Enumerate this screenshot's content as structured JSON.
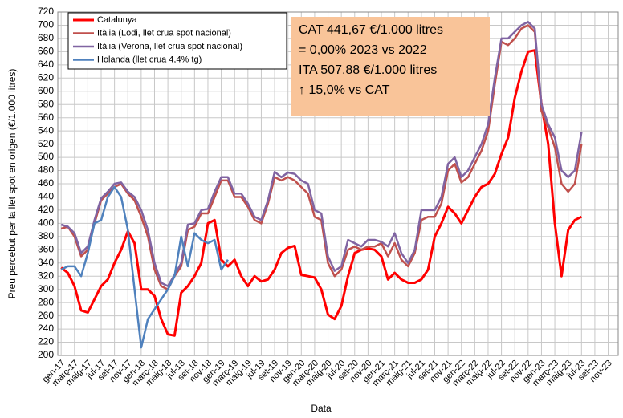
{
  "chart_data": {
    "type": "line",
    "x_label": "Data",
    "y_label": "Preu percebut per la llet spot en origen (€/1.000 litres)",
    "annotation": [
      "CAT 441,67 €/1.000 litres",
      "= 0,00% 2023 vs 2022",
      "ITA 507,88 €/1.000 litres",
      "↑ 15,0% vs CAT"
    ],
    "categories": [
      "gen-17",
      null,
      "març-17",
      null,
      "maig-17",
      null,
      "jul-17",
      null,
      "set-17",
      null,
      "nov-17",
      null,
      "gen-18",
      null,
      "març-18",
      null,
      "maig-18",
      null,
      "jul-18",
      null,
      "set-18",
      null,
      "nov-18",
      null,
      "gen-19",
      null,
      "març-19",
      null,
      "maig-19",
      null,
      "jul-19",
      null,
      "set-19",
      null,
      "nov-19",
      null,
      "gen-20",
      null,
      "març-20",
      null,
      "maig-20",
      null,
      "jul-20",
      null,
      "set-20",
      null,
      "nov-20",
      null,
      "gen-21",
      null,
      "març-21",
      null,
      "maig-21",
      null,
      "jul-21",
      null,
      "set-21",
      null,
      "nov-21",
      null,
      "gen-22",
      null,
      "març-22",
      null,
      "maig-22",
      null,
      "jul-22",
      null,
      "set-22",
      null,
      "nov-22",
      null,
      "gen-23",
      null,
      "març-23",
      null,
      "maig-23",
      null,
      "jul-23",
      null,
      "set-23",
      null,
      "nov-23",
      null
    ],
    "series": [
      {
        "name": "Catalunya",
        "color": "#ff0000",
        "width": 3,
        "values": [
          333,
          325,
          305,
          268,
          265,
          285,
          305,
          315,
          340,
          360,
          388,
          370,
          300,
          300,
          290,
          255,
          232,
          230,
          295,
          305,
          320,
          340,
          400,
          405,
          345,
          335,
          345,
          320,
          305,
          320,
          312,
          315,
          330,
          355,
          363,
          366,
          322,
          320,
          318,
          300,
          262,
          255,
          275,
          320,
          355,
          360,
          362,
          360,
          350,
          315,
          325,
          315,
          310,
          310,
          315,
          330,
          380,
          400,
          425,
          415,
          400,
          420,
          440,
          455,
          460,
          475,
          505,
          530,
          590,
          630,
          660,
          662,
          580,
          520,
          400,
          320,
          390,
          405,
          410,
          null,
          null,
          null,
          null,
          null
        ]
      },
      {
        "name": "Itàlia (Lodi, llet crua spot nacional)",
        "color": "#c0504d",
        "width": 2.5,
        "values": [
          392,
          395,
          380,
          350,
          360,
          400,
          435,
          445,
          455,
          460,
          445,
          435,
          410,
          380,
          330,
          305,
          300,
          320,
          335,
          390,
          395,
          415,
          415,
          440,
          465,
          465,
          440,
          440,
          425,
          405,
          400,
          430,
          470,
          465,
          470,
          465,
          455,
          445,
          410,
          405,
          340,
          320,
          330,
          360,
          365,
          360,
          365,
          365,
          370,
          350,
          370,
          345,
          335,
          355,
          405,
          410,
          410,
          430,
          480,
          490,
          462,
          470,
          490,
          510,
          540,
          610,
          675,
          670,
          680,
          695,
          700,
          690,
          570,
          545,
          515,
          460,
          448,
          460,
          520,
          null,
          null,
          null,
          null,
          null
        ]
      },
      {
        "name": "Itàlia (Verona, llet crua spot nacional)",
        "color": "#8064a2",
        "width": 2.5,
        "values": [
          398,
          395,
          385,
          355,
          365,
          405,
          438,
          448,
          460,
          462,
          448,
          440,
          420,
          390,
          340,
          310,
          305,
          322,
          340,
          398,
          400,
          420,
          422,
          448,
          470,
          470,
          445,
          445,
          430,
          410,
          405,
          435,
          478,
          470,
          477,
          475,
          465,
          460,
          420,
          415,
          350,
          328,
          335,
          375,
          370,
          365,
          375,
          375,
          372,
          365,
          385,
          355,
          340,
          360,
          420,
          420,
          420,
          440,
          490,
          500,
          470,
          480,
          500,
          520,
          550,
          620,
          680,
          680,
          690,
          700,
          705,
          695,
          580,
          550,
          530,
          480,
          470,
          480,
          538,
          null,
          null,
          null,
          null,
          null
        ]
      },
      {
        "name": "Holanda (llet crua 4,4% tg)",
        "color": "#4f81bd",
        "width": 2.5,
        "values": [
          330,
          335,
          335,
          320,
          355,
          400,
          405,
          440,
          455,
          440,
          390,
          300,
          212,
          255,
          270,
          285,
          300,
          320,
          380,
          335,
          385,
          375,
          370,
          375,
          330,
          345,
          null,
          null,
          null,
          null,
          null,
          null,
          null,
          null,
          null,
          null,
          null,
          null,
          null,
          null,
          null,
          null,
          null,
          null,
          null,
          null,
          null,
          null,
          null,
          null,
          null,
          null,
          null,
          null,
          null,
          null,
          null,
          null,
          null,
          null,
          null,
          null,
          null,
          null,
          null,
          null,
          null,
          null,
          null,
          null,
          null,
          null,
          null,
          null,
          null,
          null,
          null,
          null,
          null,
          null,
          null,
          null,
          null,
          null
        ]
      }
    ],
    "ylim": [
      200,
      720
    ],
    "yticks": [
      200,
      220,
      240,
      260,
      280,
      300,
      320,
      340,
      360,
      380,
      400,
      420,
      440,
      460,
      480,
      500,
      520,
      540,
      560,
      580,
      600,
      620,
      640,
      660,
      680,
      700,
      720
    ],
    "grid": true,
    "legend": "upper left"
  }
}
